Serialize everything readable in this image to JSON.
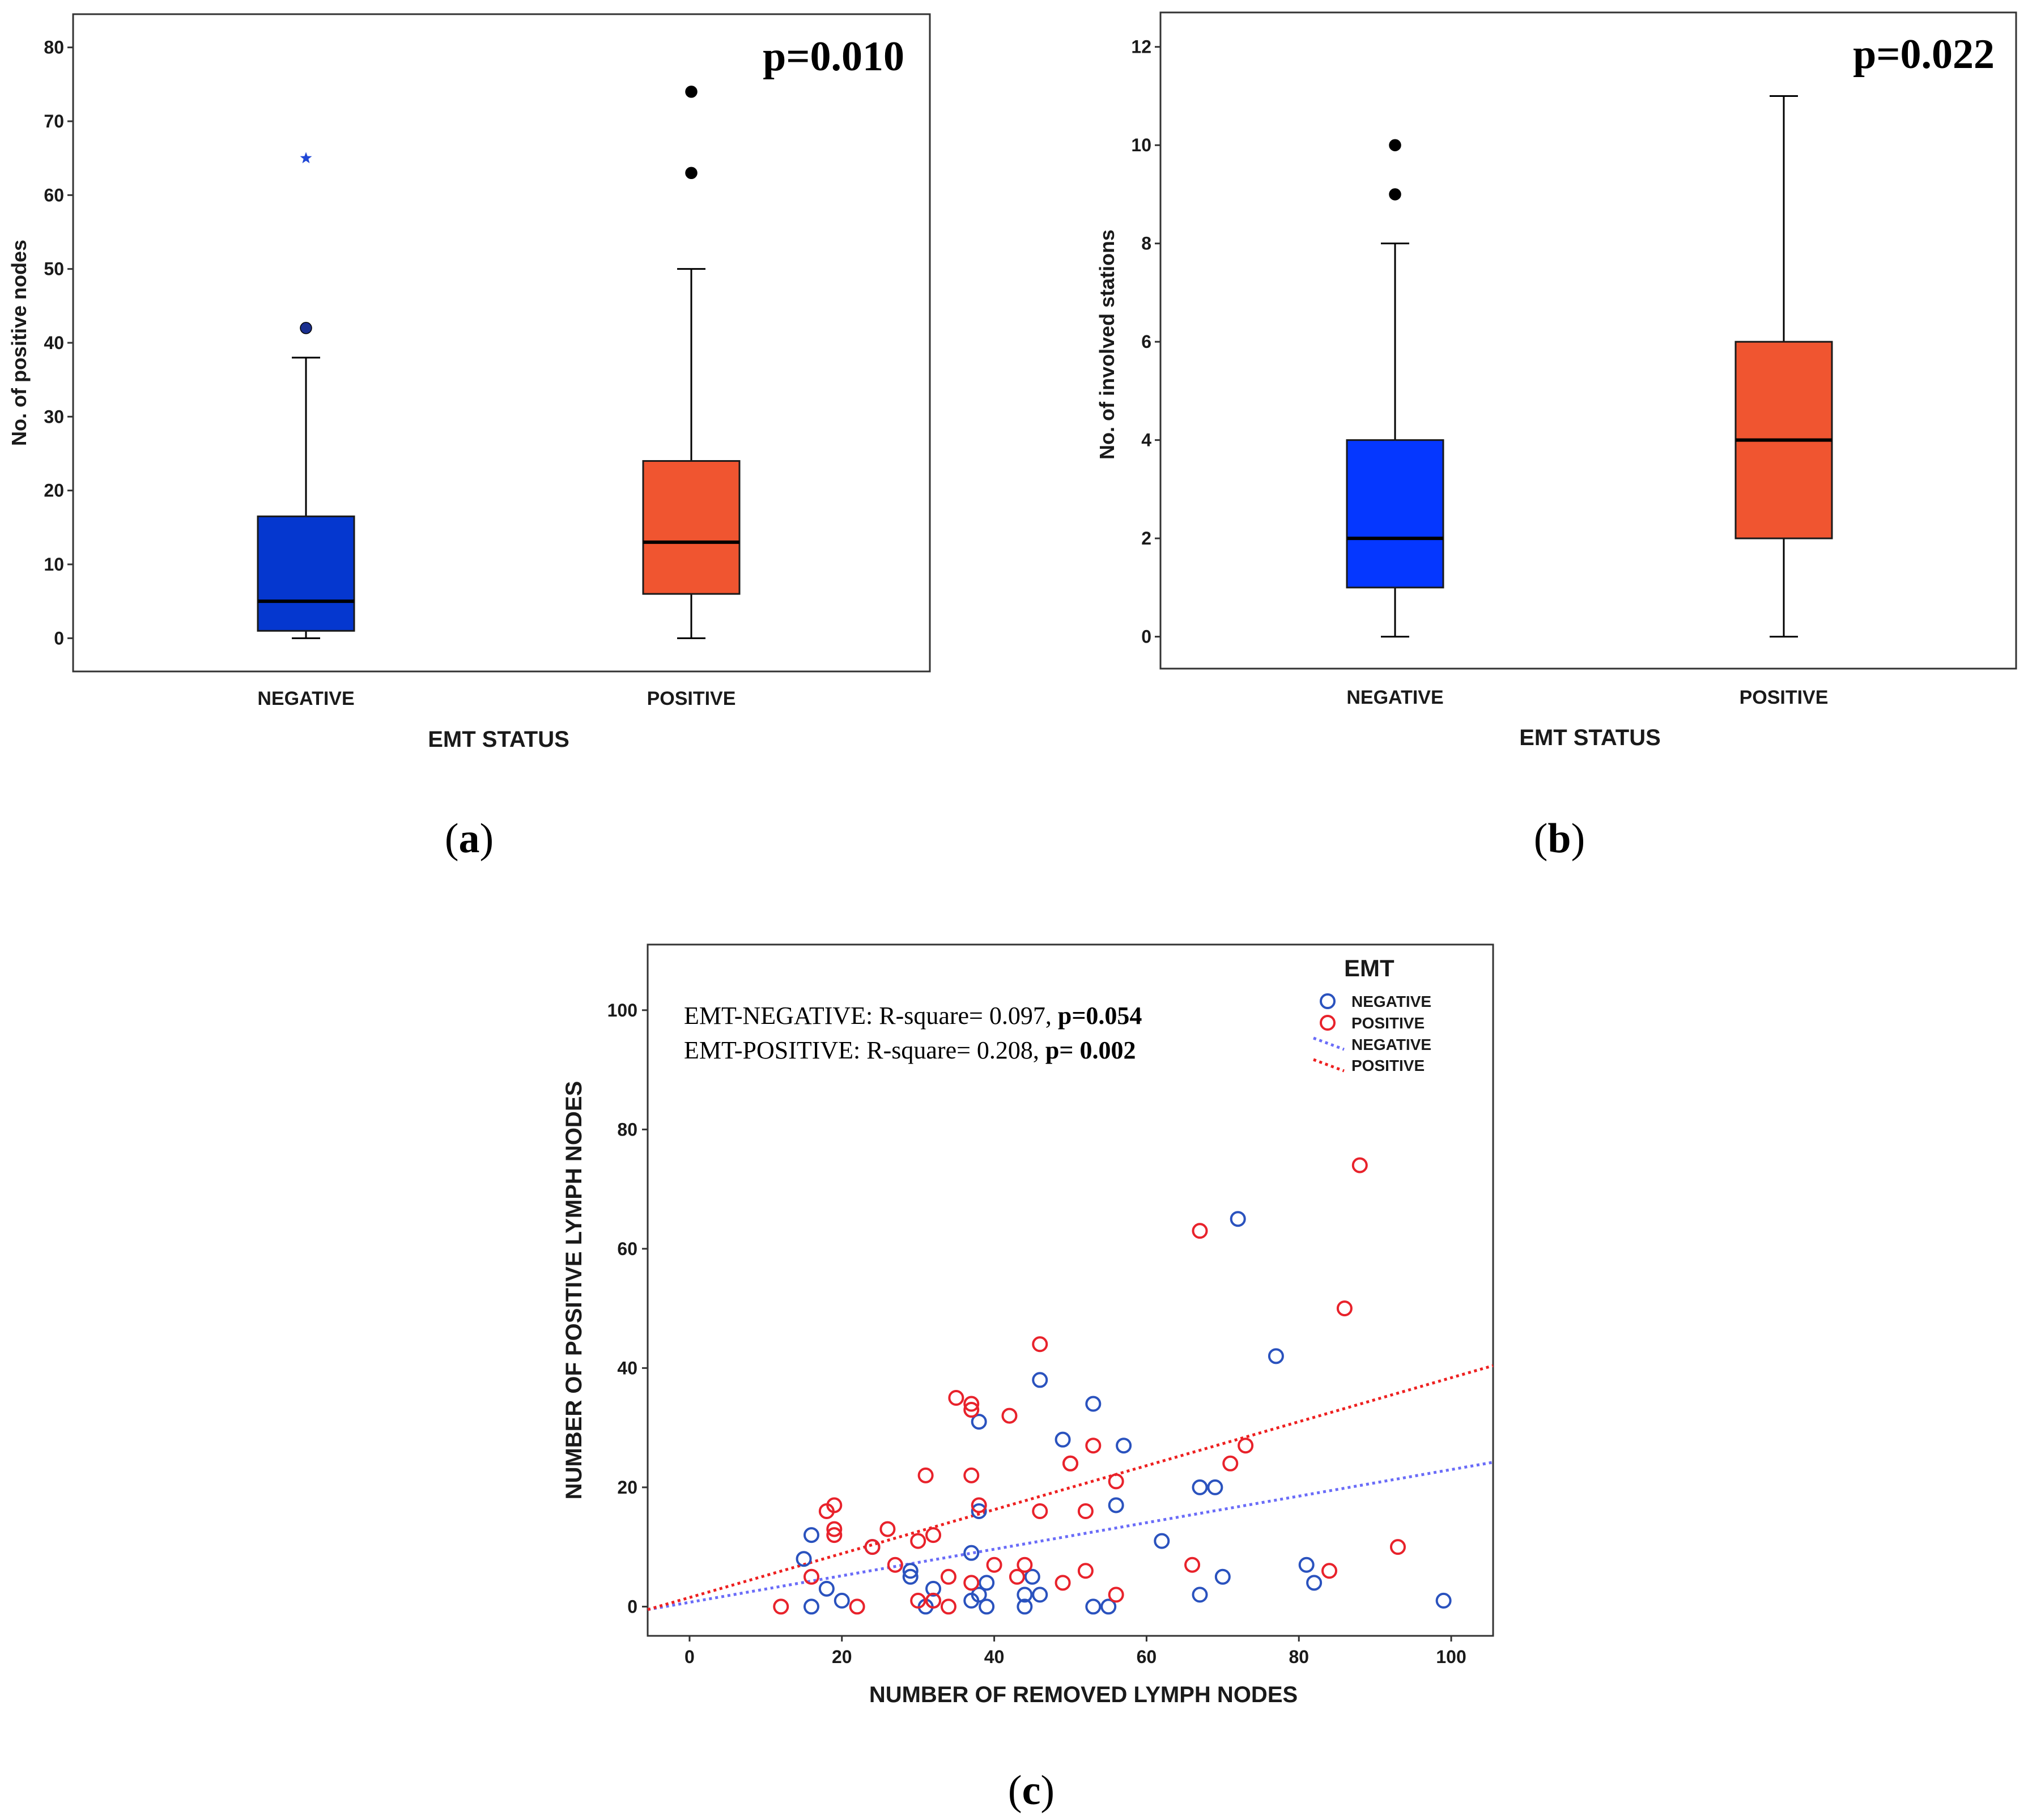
{
  "chart_data": [
    {
      "type": "box",
      "panel_label": "a",
      "xlabel": "EMT STATUS",
      "ylabel": "No. of positive nodes",
      "ylim": [
        -4.5,
        84.5
      ],
      "yticks": [
        0,
        10,
        20,
        30,
        40,
        50,
        60,
        70,
        80
      ],
      "categories": [
        "NEGATIVE",
        "POSITIVE"
      ],
      "annotation": "p=0.010",
      "boxes": [
        {
          "name": "NEGATIVE",
          "color": "#0537cf",
          "whisker_low": 0,
          "q1": 1,
          "median": 5,
          "q3": 16.5,
          "whisker_high": 38,
          "outliers": [
            {
              "value": 42,
              "marker": "circle"
            },
            {
              "value": 65,
              "marker": "star"
            }
          ]
        },
        {
          "name": "POSITIVE",
          "color": "#f05530",
          "whisker_low": 0,
          "q1": 6,
          "median": 13,
          "q3": 24,
          "whisker_high": 50,
          "outliers": [
            {
              "value": 63,
              "marker": "circle"
            },
            {
              "value": 74,
              "marker": "circle"
            }
          ]
        }
      ]
    },
    {
      "type": "box",
      "panel_label": "b",
      "xlabel": "EMT STATUS",
      "ylabel": "No. of involved stations",
      "ylim": [
        -0.65,
        12.7
      ],
      "yticks": [
        0,
        2,
        4,
        6,
        8,
        10,
        12
      ],
      "categories": [
        "NEGATIVE",
        "POSITIVE"
      ],
      "annotation": "p=0.022",
      "boxes": [
        {
          "name": "NEGATIVE",
          "color": "#0537ff",
          "whisker_low": 0,
          "q1": 1,
          "median": 2,
          "q3": 4,
          "whisker_high": 8,
          "outliers": [
            {
              "value": 9,
              "marker": "circle"
            },
            {
              "value": 10,
              "marker": "circle"
            }
          ]
        },
        {
          "name": "POSITIVE",
          "color": "#f05530",
          "whisker_low": 0,
          "q1": 2,
          "median": 4,
          "q3": 6,
          "whisker_high": 11,
          "outliers": []
        }
      ]
    },
    {
      "type": "scatter",
      "panel_label": "c",
      "xlabel": "NUMBER OF REMOVED LYMPH NODES",
      "ylabel": "NUMBER OF POSITIVE LYMPH NODES",
      "xlim": [
        -5.5,
        105.5
      ],
      "ylim": [
        -4.9,
        111
      ],
      "xticks": [
        0,
        20,
        40,
        60,
        80,
        100
      ],
      "yticks": [
        0,
        20,
        40,
        60,
        80,
        100
      ],
      "annotations": [
        {
          "text": "EMT-NEGATIVE: R-square= 0.097, ",
          "bold": "p=0.054"
        },
        {
          "text": "EMT-POSITIVE: R-square= 0.208, ",
          "bold": "p= 0.002"
        }
      ],
      "legend": {
        "title": "EMT",
        "position": "top-right",
        "items": [
          {
            "label": "NEGATIVE",
            "kind": "marker"
          },
          {
            "label": "POSITIVE",
            "kind": "marker"
          },
          {
            "label": "NEGATIVE",
            "kind": "line"
          },
          {
            "label": "POSITIVE",
            "kind": "line"
          }
        ]
      },
      "series": [
        {
          "name": "NEGATIVE",
          "color": "#2a52be",
          "fit": {
            "x_start": -5.5,
            "y_start": -0.5,
            "x_end": 105.5,
            "y_end": 24.2,
            "line_color": "#6a6cf8"
          },
          "points": [
            [
              15,
              8
            ],
            [
              16,
              12
            ],
            [
              16,
              0
            ],
            [
              18,
              3
            ],
            [
              20,
              1
            ],
            [
              24,
              10
            ],
            [
              29,
              6
            ],
            [
              29,
              5
            ],
            [
              31,
              0
            ],
            [
              32,
              3
            ],
            [
              32,
              1
            ],
            [
              37,
              9
            ],
            [
              37,
              1
            ],
            [
              38,
              31
            ],
            [
              38,
              16
            ],
            [
              38,
              2
            ],
            [
              39,
              4
            ],
            [
              39,
              0
            ],
            [
              44,
              2
            ],
            [
              44,
              0
            ],
            [
              45,
              5
            ],
            [
              46,
              38
            ],
            [
              46,
              2
            ],
            [
              49,
              28
            ],
            [
              53,
              34
            ],
            [
              53,
              0
            ],
            [
              55,
              0
            ],
            [
              56,
              17
            ],
            [
              57,
              27
            ],
            [
              62,
              11
            ],
            [
              67,
              20
            ],
            [
              67,
              2
            ],
            [
              69,
              20
            ],
            [
              70,
              5
            ],
            [
              72,
              65
            ],
            [
              77,
              42
            ],
            [
              81,
              7
            ],
            [
              82,
              4
            ],
            [
              99,
              1
            ]
          ]
        },
        {
          "name": "POSITIVE",
          "color": "#e8222b",
          "fit": {
            "x_start": -5.5,
            "y_start": -0.5,
            "x_end": 105.5,
            "y_end": 40.4,
            "line_color": "#ee2020"
          },
          "points": [
            [
              12,
              0
            ],
            [
              16,
              5
            ],
            [
              18,
              16
            ],
            [
              19,
              17
            ],
            [
              19,
              13
            ],
            [
              19,
              12
            ],
            [
              22,
              0
            ],
            [
              24,
              10
            ],
            [
              26,
              13
            ],
            [
              27,
              7
            ],
            [
              30,
              11
            ],
            [
              30,
              1
            ],
            [
              31,
              22
            ],
            [
              32,
              12
            ],
            [
              32,
              1
            ],
            [
              34,
              5
            ],
            [
              34,
              0
            ],
            [
              35,
              35
            ],
            [
              37,
              34
            ],
            [
              37,
              33
            ],
            [
              37,
              22
            ],
            [
              37,
              4
            ],
            [
              38,
              17
            ],
            [
              40,
              7
            ],
            [
              42,
              32
            ],
            [
              43,
              5
            ],
            [
              44,
              7
            ],
            [
              46,
              44
            ],
            [
              46,
              16
            ],
            [
              49,
              4
            ],
            [
              50,
              24
            ],
            [
              50,
              24
            ],
            [
              52,
              16
            ],
            [
              52,
              6
            ],
            [
              53,
              27
            ],
            [
              56,
              21
            ],
            [
              56,
              2
            ],
            [
              66,
              7
            ],
            [
              67,
              63
            ],
            [
              71,
              24
            ],
            [
              73,
              27
            ],
            [
              84,
              6
            ],
            [
              86,
              50
            ],
            [
              88,
              74
            ],
            [
              93,
              10
            ]
          ]
        }
      ]
    }
  ]
}
